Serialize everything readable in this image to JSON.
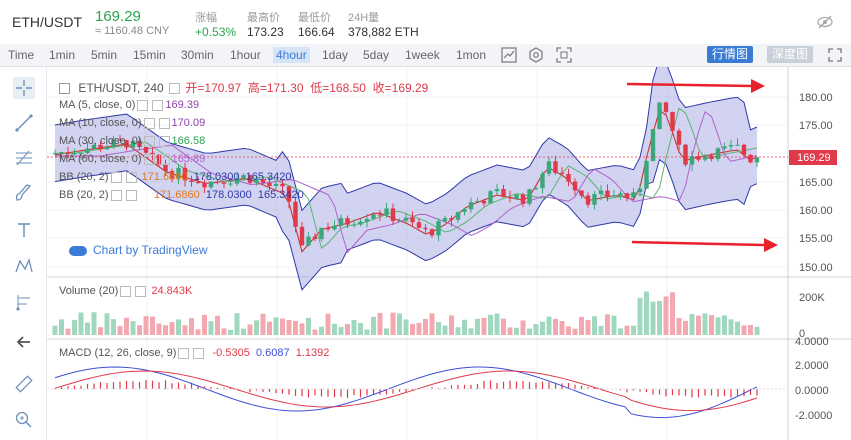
{
  "header": {
    "pair": "ETH/USDT",
    "price": "169.29",
    "cny": "≈ 1160.48 CNY",
    "stats": [
      {
        "label": "涨幅",
        "value": "+0.53%"
      },
      {
        "label": "最高价",
        "value": "173.23"
      },
      {
        "label": "最低价",
        "value": "166.64"
      },
      {
        "label": "24H量",
        "value": "378,882 ETH"
      }
    ]
  },
  "timeframes": [
    "Time",
    "1min",
    "5min",
    "15min",
    "30min",
    "1hour",
    "4hour",
    "1day",
    "5day",
    "1week",
    "1mon"
  ],
  "active_timeframe": "4hour",
  "views": {
    "candle": "行情图",
    "depth": "深度图"
  },
  "main_legend": {
    "title": "ETH/USDT, 240",
    "open_label": "开",
    "open": "170.97",
    "high_label": "高",
    "high": "171.30",
    "low_label": "低",
    "low": "168.50",
    "close_label": "收",
    "close": "169.29",
    "ma5": "MA (5, close, 0)",
    "ma5_val": "169.39",
    "ma10": "MA (10, close, 0)",
    "ma10_val": "170.09",
    "ma30": "MA (30, close, 0)",
    "ma30_val": "166.58",
    "ma60": "MA (60, close, 0)",
    "ma60_val": "165.89",
    "bb1": "BB (20, 2)",
    "bb1_vals": [
      "171.6860",
      "178.0300",
      "165.3420"
    ],
    "bb2": "BB (20, 2)",
    "bb2_vals": [
      "171.6860",
      "178.0300",
      "165.3420"
    ],
    "watermark": "Chart by TradingView"
  },
  "price_axis": [
    "180.00",
    "175.00",
    "170.00",
    "165.00",
    "160.00",
    "155.00",
    "150.00"
  ],
  "current_price_tag": "169.29",
  "volume_legend": {
    "label": "Volume (20)",
    "value": "24.843K"
  },
  "volume_axis": [
    "200K",
    "0"
  ],
  "macd_legend": {
    "label": "MACD (12, 26, close, 9)",
    "v1": "-0.5305",
    "v2": "0.6087",
    "v3": "1.1392"
  },
  "macd_axis": [
    "4.0000",
    "2.0000",
    "0.0000",
    "-2.0000"
  ],
  "colors": {
    "up": "#3aa77b",
    "down": "#e0394a",
    "accent": "#3a7bd5",
    "band": "#a6a8e4"
  }
}
